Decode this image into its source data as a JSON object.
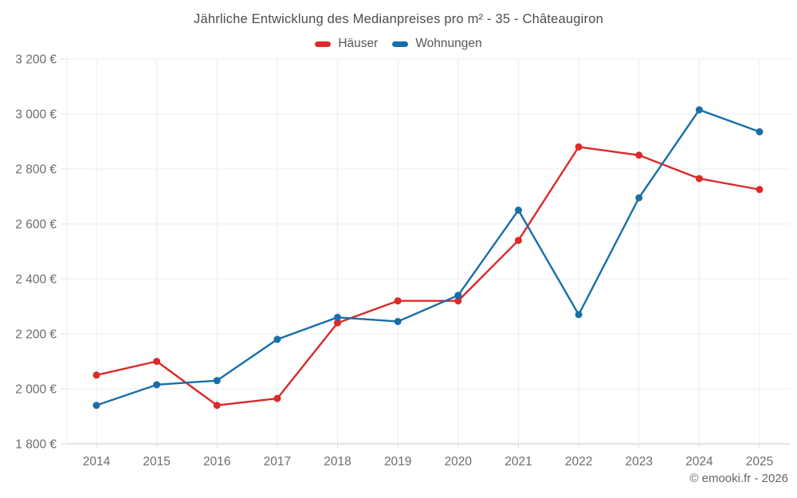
{
  "chart": {
    "title": "Jährliche Entwicklung des Medianpreises pro m² - 35 - Châteaugiron"
  },
  "legend": {
    "items": [
      {
        "label": "Häuser"
      },
      {
        "label": "Wohnungen"
      }
    ]
  },
  "chart_data": {
    "type": "line",
    "title": "Jährliche Entwicklung des Medianpreises pro m² - 35 - Châteaugiron",
    "xlabel": "",
    "ylabel": "",
    "x": [
      2014,
      2015,
      2016,
      2017,
      2018,
      2019,
      2020,
      2021,
      2022,
      2023,
      2024,
      2025
    ],
    "series": [
      {
        "id": "haeuser",
        "name": "Häuser",
        "color": "#dc2a27",
        "values": [
          2050,
          2100,
          1940,
          1965,
          2240,
          2320,
          2320,
          2540,
          2880,
          2850,
          2765,
          2725
        ]
      },
      {
        "id": "wohnungen",
        "name": "Wohnungen",
        "color": "#186fa8",
        "values": [
          1940,
          2015,
          2030,
          2180,
          2260,
          2245,
          2340,
          2650,
          2270,
          2695,
          3015,
          2935
        ]
      }
    ],
    "ylim": [
      1800,
      3200
    ],
    "ytick_step": 200,
    "y_ticks": [
      {
        "value": 1800,
        "label": "1 800 €"
      },
      {
        "value": 2000,
        "label": "2 000 €"
      },
      {
        "value": 2200,
        "label": "2 200 €"
      },
      {
        "value": 2400,
        "label": "2 400 €"
      },
      {
        "value": 2600,
        "label": "2 600 €"
      },
      {
        "value": 2800,
        "label": "2 800 €"
      },
      {
        "value": 3000,
        "label": "3 000 €"
      },
      {
        "value": 3200,
        "label": "3 200 €"
      }
    ],
    "grid": true,
    "legend_position": "top"
  },
  "footer": {
    "copyright": "© emooki.fr - 2026"
  }
}
